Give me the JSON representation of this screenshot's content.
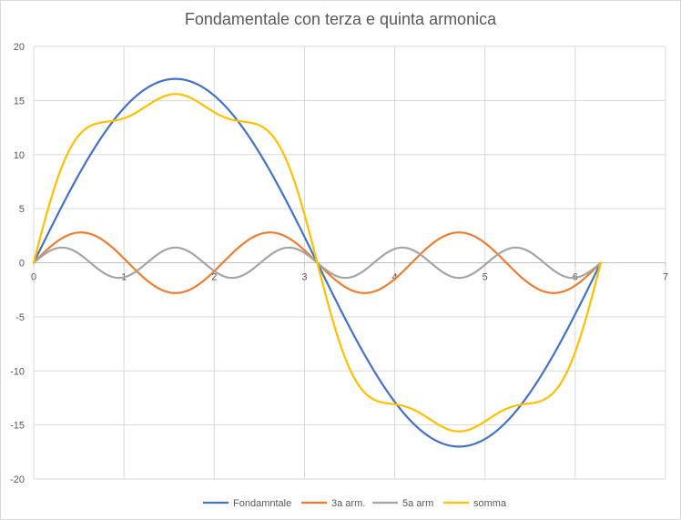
{
  "chart_data": {
    "type": "line",
    "title": "Fondamentale con terza e quinta armonica",
    "xlabel": "",
    "ylabel": "",
    "xlim": [
      0,
      7
    ],
    "ylim": [
      -20,
      20
    ],
    "x_ticks": [
      0,
      1,
      2,
      3,
      4,
      5,
      6,
      7
    ],
    "y_ticks": [
      -20,
      -15,
      -10,
      -5,
      0,
      5,
      10,
      15,
      20
    ],
    "x_max_data": 6.2832,
    "grid": true,
    "legend_position": "bottom",
    "series": [
      {
        "name": "Fondamntale",
        "color": "#4472c4",
        "amplitude": 17,
        "harmonic": 1
      },
      {
        "name": "3a arm.",
        "color": "#ed7d31",
        "amplitude": 2.8,
        "harmonic": 3
      },
      {
        "name": "5a arm",
        "color": "#a5a5a5",
        "amplitude": 1.4,
        "harmonic": 5
      },
      {
        "name": "somma",
        "color": "#ffc000",
        "amplitude": null,
        "harmonic": null
      }
    ]
  }
}
